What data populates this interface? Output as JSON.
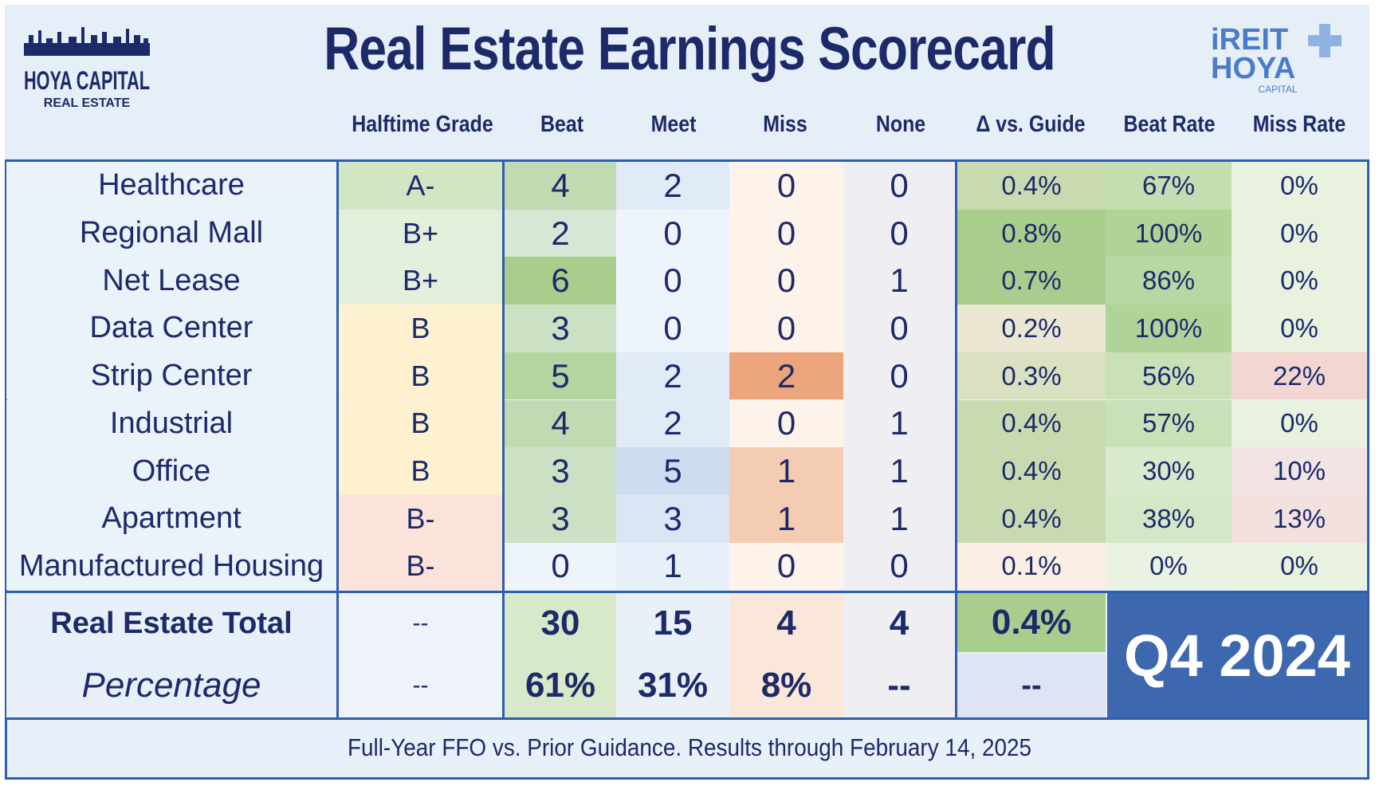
{
  "title": "Real Estate Earnings Scorecard",
  "logos": {
    "left": {
      "line1": "HOYA CAPITAL",
      "line2": "REAL ESTATE"
    },
    "right": {
      "line1": "iREIT",
      "line2": "HOYA",
      "line3": "CAPITAL"
    }
  },
  "columns": {
    "grade": "Halftime Grade",
    "beat": "Beat",
    "meet": "Meet",
    "miss": "Miss",
    "none": "None",
    "delta": "Δ vs. Guide",
    "beat_rate": "Beat Rate",
    "miss_rate": "Miss Rate"
  },
  "chart_data": {
    "type": "table",
    "title": "Real Estate Earnings Scorecard",
    "columns": [
      "Halftime Grade",
      "Beat",
      "Meet",
      "Miss",
      "None",
      "Δ vs. Guide",
      "Beat Rate",
      "Miss Rate"
    ],
    "rows": [
      {
        "sector": "Healthcare",
        "grade": "A-",
        "beat": "4",
        "meet": "2",
        "miss": "0",
        "none": "0",
        "delta": "0.4%",
        "beat_rate": "67%",
        "miss_rate": "0%"
      },
      {
        "sector": "Regional Mall",
        "grade": "B+",
        "beat": "2",
        "meet": "0",
        "miss": "0",
        "none": "0",
        "delta": "0.8%",
        "beat_rate": "100%",
        "miss_rate": "0%"
      },
      {
        "sector": "Net Lease",
        "grade": "B+",
        "beat": "6",
        "meet": "0",
        "miss": "0",
        "none": "1",
        "delta": "0.7%",
        "beat_rate": "86%",
        "miss_rate": "0%"
      },
      {
        "sector": "Data Center",
        "grade": "B",
        "beat": "3",
        "meet": "0",
        "miss": "0",
        "none": "0",
        "delta": "0.2%",
        "beat_rate": "100%",
        "miss_rate": "0%"
      },
      {
        "sector": "Strip Center",
        "grade": "B",
        "beat": "5",
        "meet": "2",
        "miss": "2",
        "none": "0",
        "delta": "0.3%",
        "beat_rate": "56%",
        "miss_rate": "22%"
      },
      {
        "sector": "Industrial",
        "grade": "B",
        "beat": "4",
        "meet": "2",
        "miss": "0",
        "none": "1",
        "delta": "0.4%",
        "beat_rate": "57%",
        "miss_rate": "0%"
      },
      {
        "sector": "Office",
        "grade": "B",
        "beat": "3",
        "meet": "5",
        "miss": "1",
        "none": "1",
        "delta": "0.4%",
        "beat_rate": "30%",
        "miss_rate": "10%"
      },
      {
        "sector": "Apartment",
        "grade": "B-",
        "beat": "3",
        "meet": "3",
        "miss": "1",
        "none": "1",
        "delta": "0.4%",
        "beat_rate": "38%",
        "miss_rate": "13%"
      },
      {
        "sector": "Manufactured Housing",
        "grade": "B-",
        "beat": "0",
        "meet": "1",
        "miss": "0",
        "none": "0",
        "delta": "0.1%",
        "beat_rate": "0%",
        "miss_rate": "0%"
      }
    ],
    "totals": {
      "label": "Real Estate Total",
      "grade": "--",
      "beat": "30",
      "meet": "15",
      "miss": "4",
      "none": "4",
      "delta": "0.4%"
    },
    "percentages": {
      "label": "Percentage",
      "grade": "--",
      "beat": "61%",
      "meet": "31%",
      "miss": "8%",
      "none": "--",
      "delta": "--"
    }
  },
  "period": "Q4 2024",
  "footer": "Full-Year FFO vs. Prior Guidance. Results through February 14, 2025",
  "colors": {
    "navy": "#1c2a6a",
    "border": "#2f5db0",
    "period_bg": "#3d68ad"
  }
}
